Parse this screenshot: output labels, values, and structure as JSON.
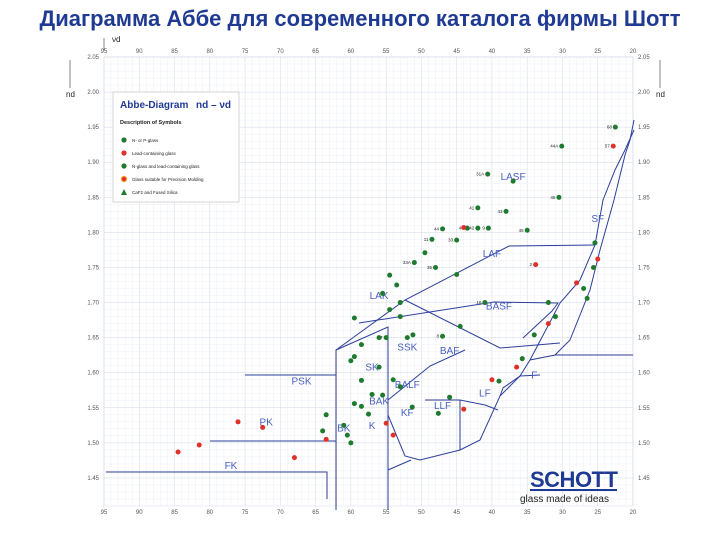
{
  "slide": {
    "title": "Диаграмма Аббе для современного каталога фирмы Шотт"
  },
  "chart_data": {
    "type": "scatter",
    "x_axis_label": "νd",
    "y_axis_label": "nd",
    "xlim": [
      95,
      20
    ],
    "ylim": [
      1.41,
      2.05
    ],
    "x_ticks": [
      95,
      90,
      85,
      80,
      75,
      70,
      65,
      60,
      55,
      50,
      45,
      40,
      35,
      30,
      25,
      20
    ],
    "y_ticks": [
      2.05,
      2.0,
      1.95,
      1.9,
      1.85,
      1.8,
      1.75,
      1.7,
      1.65,
      1.6,
      1.55,
      1.5,
      1.45
    ],
    "grid": true,
    "legend": {
      "title": "Abbe-Diagram",
      "formula": "nd – νd",
      "subtitle": "Description of Symbols",
      "items": [
        {
          "label": "N- or P-glass",
          "shape": "circle",
          "color": "#1e7a2e"
        },
        {
          "label": "Lead-containing glass",
          "shape": "circle",
          "color": "#e0302a"
        },
        {
          "label": "N-glass and lead-containing glass",
          "shape": "circle",
          "color": "#1e7a2e"
        },
        {
          "label": "Glass suitable for Precision Molding",
          "shape": "ring",
          "color": "#f0a030"
        },
        {
          "label": "CaF2 and Fused Silica",
          "shape": "triangle",
          "color": "#1e7a2e"
        }
      ]
    },
    "region_labels": [
      {
        "text": "LASF",
        "x": 37,
        "y": 1.875
      },
      {
        "text": "SF",
        "x": 25,
        "y": 1.815
      },
      {
        "text": "LAF",
        "x": 40,
        "y": 1.765
      },
      {
        "text": "LAK",
        "x": 56,
        "y": 1.705
      },
      {
        "text": "BASF",
        "x": 39,
        "y": 1.69
      },
      {
        "text": "SSK",
        "x": 52,
        "y": 1.632
      },
      {
        "text": "BAF",
        "x": 46,
        "y": 1.627
      },
      {
        "text": "PSK",
        "x": 67,
        "y": 1.583
      },
      {
        "text": "SK",
        "x": 57,
        "y": 1.603
      },
      {
        "text": "BALF",
        "x": 52,
        "y": 1.578
      },
      {
        "text": "F",
        "x": 34,
        "y": 1.592
      },
      {
        "text": "BAK",
        "x": 56,
        "y": 1.555
      },
      {
        "text": "LLF",
        "x": 47,
        "y": 1.548
      },
      {
        "text": "LF",
        "x": 41,
        "y": 1.566
      },
      {
        "text": "KF",
        "x": 52,
        "y": 1.538
      },
      {
        "text": "PK",
        "x": 72,
        "y": 1.525
      },
      {
        "text": "BK",
        "x": 61,
        "y": 1.516
      },
      {
        "text": "K",
        "x": 57,
        "y": 1.52
      },
      {
        "text": "FK",
        "x": 77,
        "y": 1.463
      }
    ],
    "series": [
      {
        "color": "#1e7a2e",
        "points": [
          {
            "x": 40.6,
            "y": 1.883,
            "label": "31A"
          },
          {
            "x": 30.1,
            "y": 1.923,
            "label": "44A"
          },
          {
            "x": 22.5,
            "y": 1.95,
            "label": "68"
          },
          {
            "x": 37.0,
            "y": 1.873,
            "label": ""
          },
          {
            "x": 30.5,
            "y": 1.85,
            "label": "45"
          },
          {
            "x": 42.0,
            "y": 1.835,
            "label": "41"
          },
          {
            "x": 38.0,
            "y": 1.83,
            "label": "43"
          },
          {
            "x": 47.0,
            "y": 1.805,
            "label": "44"
          },
          {
            "x": 43.5,
            "y": 1.806,
            "label": "40"
          },
          {
            "x": 42.0,
            "y": 1.806,
            "label": "42"
          },
          {
            "x": 40.5,
            "y": 1.806,
            "label": "9"
          },
          {
            "x": 35.0,
            "y": 1.803,
            "label": "45"
          },
          {
            "x": 48.5,
            "y": 1.79,
            "label": "11"
          },
          {
            "x": 45.0,
            "y": 1.789,
            "label": "33"
          },
          {
            "x": 49.5,
            "y": 1.771,
            "label": ""
          },
          {
            "x": 51.0,
            "y": 1.757,
            "label": "33A"
          },
          {
            "x": 48.0,
            "y": 1.75,
            "label": "35"
          },
          {
            "x": 45.0,
            "y": 1.74,
            "label": ""
          },
          {
            "x": 54.5,
            "y": 1.739,
            "label": ""
          },
          {
            "x": 53.5,
            "y": 1.725,
            "label": ""
          },
          {
            "x": 55.5,
            "y": 1.713,
            "label": ""
          },
          {
            "x": 53.0,
            "y": 1.7,
            "label": ""
          },
          {
            "x": 54.5,
            "y": 1.69,
            "label": ""
          },
          {
            "x": 59.5,
            "y": 1.678,
            "label": ""
          },
          {
            "x": 53.0,
            "y": 1.68,
            "label": ""
          },
          {
            "x": 41.0,
            "y": 1.7,
            "label": "16"
          },
          {
            "x": 44.5,
            "y": 1.666,
            "label": ""
          },
          {
            "x": 47.0,
            "y": 1.652,
            "label": "8"
          },
          {
            "x": 51.2,
            "y": 1.654,
            "label": ""
          },
          {
            "x": 52.0,
            "y": 1.65,
            "label": ""
          },
          {
            "x": 55.0,
            "y": 1.65,
            "label": "7"
          },
          {
            "x": 56.0,
            "y": 1.65,
            "label": ""
          },
          {
            "x": 58.5,
            "y": 1.64,
            "label": ""
          },
          {
            "x": 59.5,
            "y": 1.623,
            "label": ""
          },
          {
            "x": 60.0,
            "y": 1.617,
            "label": ""
          },
          {
            "x": 56.0,
            "y": 1.608,
            "label": ""
          },
          {
            "x": 58.5,
            "y": 1.589,
            "label": ""
          },
          {
            "x": 57.0,
            "y": 1.569,
            "label": ""
          },
          {
            "x": 54.0,
            "y": 1.59,
            "label": ""
          },
          {
            "x": 53.0,
            "y": 1.58,
            "label": ""
          },
          {
            "x": 55.5,
            "y": 1.568,
            "label": ""
          },
          {
            "x": 58.5,
            "y": 1.552,
            "label": ""
          },
          {
            "x": 59.5,
            "y": 1.556,
            "label": ""
          },
          {
            "x": 63.5,
            "y": 1.54,
            "label": ""
          },
          {
            "x": 57.5,
            "y": 1.541,
            "label": ""
          },
          {
            "x": 61.0,
            "y": 1.525,
            "label": ""
          },
          {
            "x": 64.0,
            "y": 1.517,
            "label": ""
          },
          {
            "x": 60.5,
            "y": 1.511,
            "label": ""
          },
          {
            "x": 60.0,
            "y": 1.5,
            "label": ""
          },
          {
            "x": 47.6,
            "y": 1.542,
            "label": ""
          },
          {
            "x": 51.3,
            "y": 1.551,
            "label": ""
          },
          {
            "x": 46.0,
            "y": 1.565,
            "label": ""
          },
          {
            "x": 32.0,
            "y": 1.7,
            "label": ""
          },
          {
            "x": 25.4,
            "y": 1.785,
            "label": ""
          },
          {
            "x": 25.6,
            "y": 1.75,
            "label": ""
          },
          {
            "x": 31.0,
            "y": 1.68,
            "label": ""
          },
          {
            "x": 35.7,
            "y": 1.62,
            "label": ""
          },
          {
            "x": 39.0,
            "y": 1.588,
            "label": ""
          },
          {
            "x": 26.5,
            "y": 1.706,
            "label": ""
          },
          {
            "x": 27.0,
            "y": 1.72,
            "label": ""
          },
          {
            "x": 34.0,
            "y": 1.654,
            "label": ""
          }
        ]
      },
      {
        "color": "#e0302a",
        "points": [
          {
            "x": 22.8,
            "y": 1.923,
            "label": "57"
          },
          {
            "x": 44.0,
            "y": 1.807,
            "label": ""
          },
          {
            "x": 33.8,
            "y": 1.754,
            "label": "2"
          },
          {
            "x": 28.0,
            "y": 1.728,
            "label": ""
          },
          {
            "x": 25.0,
            "y": 1.762,
            "label": ""
          },
          {
            "x": 32.0,
            "y": 1.67,
            "label": ""
          },
          {
            "x": 36.5,
            "y": 1.608,
            "label": ""
          },
          {
            "x": 44.0,
            "y": 1.548,
            "label": ""
          },
          {
            "x": 40.0,
            "y": 1.59,
            "label": ""
          },
          {
            "x": 55.0,
            "y": 1.528,
            "label": ""
          },
          {
            "x": 54.0,
            "y": 1.511,
            "label": ""
          },
          {
            "x": 63.5,
            "y": 1.505,
            "label": ""
          },
          {
            "x": 81.5,
            "y": 1.497,
            "label": ""
          },
          {
            "x": 84.5,
            "y": 1.487,
            "label": ""
          },
          {
            "x": 76.0,
            "y": 1.53,
            "label": ""
          },
          {
            "x": 72.5,
            "y": 1.522,
            "label": ""
          },
          {
            "x": 68.0,
            "y": 1.479,
            "label": ""
          }
        ]
      }
    ]
  },
  "brand": {
    "name": "SCHOTT",
    "slogan": "glass made of ideas"
  }
}
